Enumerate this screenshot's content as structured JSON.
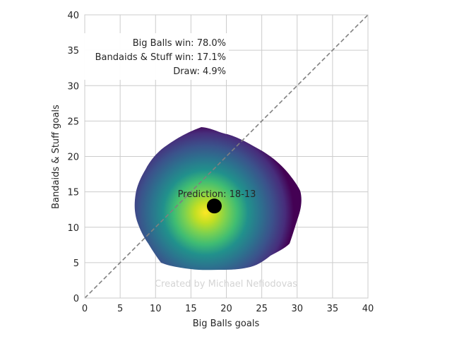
{
  "chart_data": {
    "type": "heatmap",
    "xlabel": "Big Balls goals",
    "ylabel": "Bandaids & Stuff goals",
    "xlim": [
      0,
      40
    ],
    "ylim": [
      0,
      40
    ],
    "xticks": [
      0,
      5,
      10,
      15,
      20,
      25,
      30,
      35,
      40
    ],
    "yticks": [
      0,
      5,
      10,
      15,
      20,
      25,
      30,
      35,
      40
    ],
    "grid": true,
    "colormap": "viridis",
    "density": {
      "peak": [
        17.5,
        12
      ],
      "extent_x": [
        7,
        30.8
      ],
      "extent_y": [
        3.8,
        24.2
      ]
    },
    "diagonal": {
      "from": [
        0,
        0
      ],
      "to": [
        40,
        40
      ],
      "style": "dashed",
      "color": "#808080"
    },
    "prediction": {
      "x": 18.3,
      "y": 13,
      "label": "Prediction: 18-13"
    },
    "probabilities": [
      "Big Balls win: 78.0%",
      "Bandaids & Stuff win: 17.1%",
      "Draw: 4.9%"
    ],
    "watermark": "Created by Michael Nefiodovas"
  },
  "colors": {
    "grid": "#cccccc",
    "axes_edge": "#cccccc",
    "text": "#262626",
    "watermark": "#d4d4d4",
    "marker": "#000000"
  }
}
